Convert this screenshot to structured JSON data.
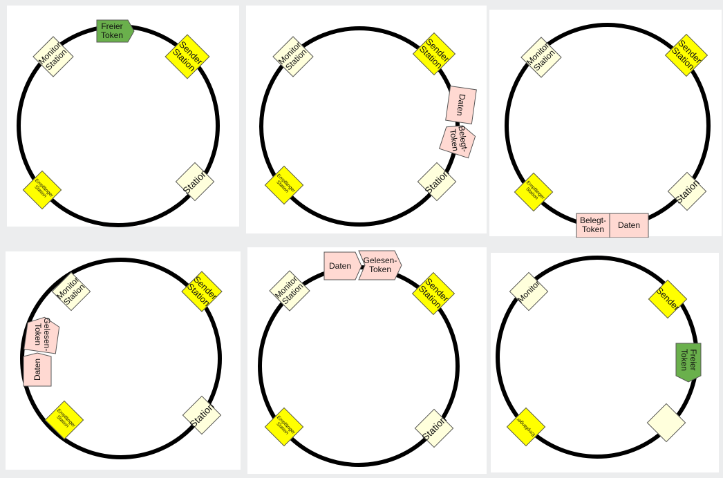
{
  "colors": {
    "ring": "#000000",
    "station_yellow": "#ffff00",
    "station_cream": "#ffffdc",
    "free_token": "#6ab04c",
    "busy_token": "#ffd9d2",
    "panel": "#ffffff",
    "background": "#ecedee"
  },
  "panels": [
    {
      "stations": {
        "monitor": "Monitor\nStation",
        "sender": "Sender\nStation",
        "receiver": "Empfänger\nStation",
        "station": "Station"
      },
      "tokens": {
        "free": "Freier\nToken"
      }
    },
    {
      "stations": {
        "monitor": "Monitor\nStation",
        "sender": "Sender\nStation",
        "receiver": "Empfänger\nStation",
        "station": "Station"
      },
      "tokens": {
        "data": "Daten",
        "busy": "Belegt-\nToken"
      }
    },
    {
      "stations": {
        "monitor": "Monitor\nStation",
        "sender": "Sender\nStation",
        "receiver": "Empfänger\nStation",
        "station": "Station"
      },
      "tokens": {
        "busy": "Belegt-\nToken",
        "data": "Daten"
      }
    },
    {
      "stations": {
        "monitor": "Monitor\nStation",
        "sender": "Sender\nStation",
        "receiver": "Empfänger\nStation",
        "station": "Station"
      },
      "tokens": {
        "read": "Gelesen-\nToken",
        "data": "Daten"
      }
    },
    {
      "stations": {
        "monitor": "Monitor\nStation",
        "sender": "Sender\nStation",
        "receiver": "Empfänger\nStation",
        "station": "Station"
      },
      "tokens": {
        "data": "Daten",
        "read": "Gelesen-\nToken"
      }
    },
    {
      "stations": {
        "monitor": "Monitor",
        "sender": "Sender",
        "receiver": "Empfänger",
        "station": ""
      },
      "tokens": {
        "free": "Freier\nToken"
      }
    }
  ]
}
